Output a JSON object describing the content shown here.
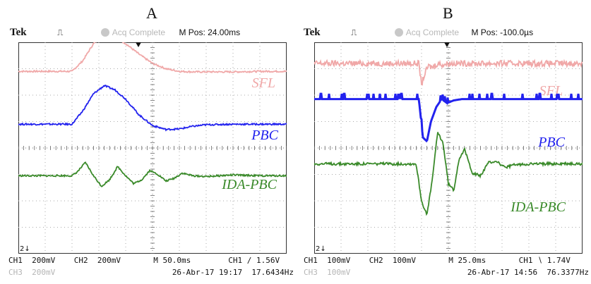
{
  "panels": [
    {
      "letter": "A",
      "brand": "Tek",
      "acq_status": "Acq Complete",
      "mpos": "M Pos: 24.00ms",
      "footer_line1": "CH1  200mV    CH2  200mV       M 50.0ms        CH1 ∕ 1.56V",
      "footer_ch3": "CH3  200mV",
      "footer_line2_rest": "26-Abr-17 19:17  17.6434Hz"
    },
    {
      "letter": "B",
      "brand": "Tek",
      "acq_status": "Acq Complete",
      "mpos": "M Pos: -100.0µs",
      "footer_line1": "CH1  100mV    CH2  100mV       M 25.0ms       CH1 ∖ 1.74V",
      "footer_ch3": "CH3  100mV",
      "footer_line2_rest": "26-Abr-17 14:56  76.3377Hz"
    }
  ],
  "chart_data": [
    {
      "type": "line",
      "title": "A",
      "xlabel": "",
      "ylabel": "",
      "grid": true,
      "xlim": [
        0,
        10
      ],
      "ylim": [
        -4,
        4
      ],
      "series": [
        {
          "name": "SFL",
          "color": "#f0a8a8",
          "x": [
            0,
            1,
            2,
            2.4,
            2.8,
            3.2,
            3.6,
            4.0,
            4.5,
            5.0,
            5.5,
            6.0,
            6.5,
            7.0,
            8.0,
            9.0,
            10.0
          ],
          "y": [
            2.9,
            2.9,
            2.9,
            3.3,
            3.95,
            4.27,
            4.2,
            3.95,
            3.55,
            3.2,
            3.0,
            2.9,
            2.88,
            2.88,
            2.88,
            2.9,
            2.9
          ]
        },
        {
          "name": "PBC",
          "color": "#2222ee",
          "x": [
            0,
            1,
            2,
            2.4,
            2.8,
            3.2,
            3.6,
            4.0,
            4.5,
            5.0,
            5.5,
            6.0,
            6.5,
            7.0,
            8.0,
            9.0,
            10.0
          ],
          "y": [
            0.9,
            0.9,
            0.9,
            1.4,
            2.05,
            2.36,
            2.2,
            1.85,
            1.25,
            0.85,
            0.7,
            0.72,
            0.82,
            0.88,
            0.9,
            0.9,
            0.9
          ]
        },
        {
          "name": "IDA-PBC",
          "color": "#3a8a2a",
          "x": [
            0,
            1,
            2,
            2.2,
            2.5,
            2.8,
            3.1,
            3.4,
            3.7,
            4.0,
            4.3,
            4.6,
            4.9,
            5.2,
            5.5,
            5.8,
            6.1,
            6.5,
            7,
            8,
            9,
            10
          ],
          "y": [
            -1.05,
            -1.05,
            -1.05,
            -0.9,
            -0.55,
            -1.05,
            -1.45,
            -1.2,
            -0.7,
            -1.05,
            -1.35,
            -1.2,
            -0.85,
            -1.0,
            -1.25,
            -1.15,
            -0.95,
            -1.05,
            -1.08,
            -1.02,
            -1.05,
            -1.05
          ]
        }
      ]
    },
    {
      "type": "line",
      "title": "B",
      "xlabel": "",
      "ylabel": "",
      "grid": true,
      "xlim": [
        0,
        10
      ],
      "ylim": [
        -4,
        4
      ],
      "series": [
        {
          "name": "SFL",
          "color": "#f0a8a8",
          "x": [
            0,
            2,
            3.9,
            4.0,
            4.1,
            4.25,
            4.4,
            4.6,
            4.8,
            5.0,
            5.5,
            6,
            7,
            8,
            9,
            10
          ],
          "y": [
            3.2,
            3.2,
            3.2,
            2.4,
            2.75,
            3.1,
            3.05,
            3.2,
            3.15,
            3.2,
            3.2,
            3.2,
            3.2,
            3.2,
            3.2,
            3.2
          ]
        },
        {
          "name": "PBC",
          "color": "#2222ee",
          "x": [
            0,
            2,
            3.9,
            4.05,
            4.2,
            4.35,
            4.55,
            4.75,
            4.95,
            5.2,
            5.5,
            6,
            7,
            8,
            9,
            10
          ],
          "y": [
            1.85,
            1.85,
            1.85,
            0.4,
            0.25,
            1.0,
            1.55,
            1.85,
            1.7,
            1.8,
            1.85,
            1.85,
            1.85,
            1.85,
            1.85,
            1.85
          ]
        },
        {
          "name": "IDA-PBC",
          "color": "#3a8a2a",
          "x": [
            0,
            2,
            3.8,
            4.0,
            4.2,
            4.4,
            4.6,
            4.8,
            5.0,
            5.2,
            5.4,
            5.6,
            5.9,
            6.2,
            6.5,
            6.8,
            7.1,
            7.4,
            8,
            9,
            10
          ],
          "y": [
            -0.6,
            -0.6,
            -0.6,
            -2.0,
            -2.55,
            -1.2,
            0.6,
            0.2,
            -1.35,
            -1.6,
            -0.4,
            -0.05,
            -0.95,
            -1.05,
            -0.55,
            -0.5,
            -0.75,
            -0.65,
            -0.6,
            -0.6,
            -0.6
          ]
        }
      ]
    }
  ]
}
